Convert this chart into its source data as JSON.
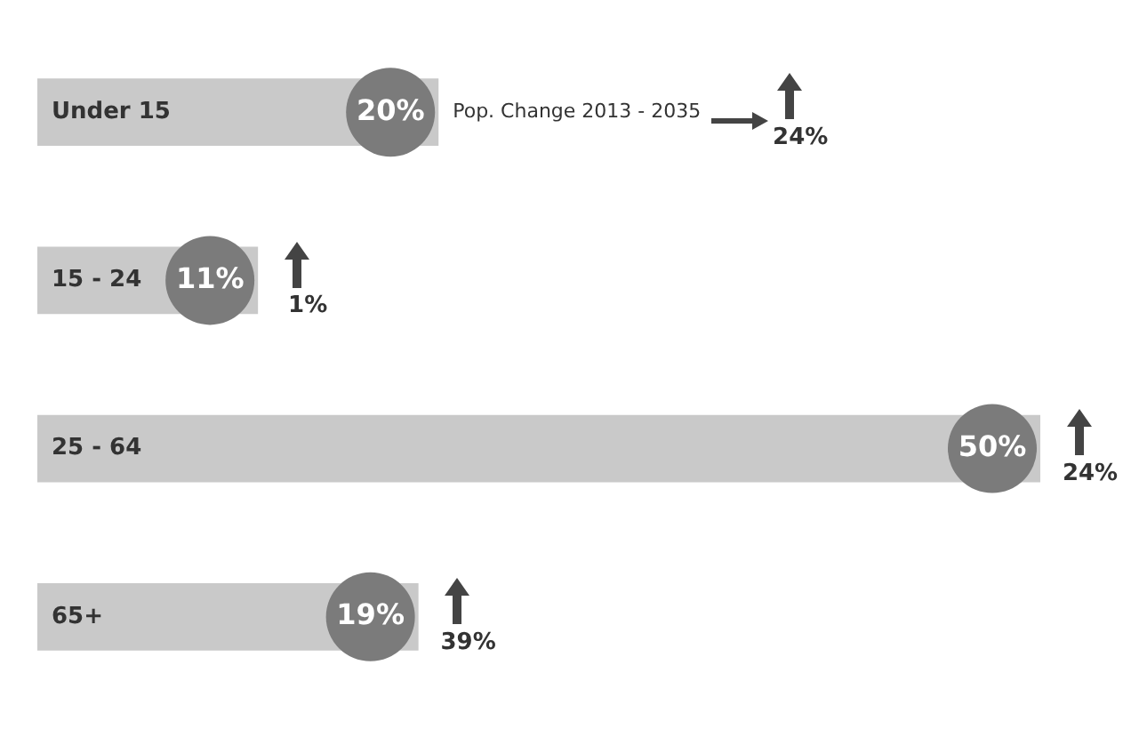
{
  "chart_data": {
    "type": "bar",
    "orientation": "horizontal",
    "categories": [
      "Under 15",
      "15 - 24",
      "25 - 64",
      "65+"
    ],
    "values": [
      20,
      11,
      50,
      19
    ],
    "color": "#c9c9c9",
    "value_labels": [
      "20%",
      "11%",
      "50%",
      "19%"
    ],
    "tick_labels": "y",
    "grid": false,
    "legend": false,
    "annotations": [
      "Pop. Change 2013 - 2035",
      "24%",
      "1%",
      "24%",
      "39%"
    ]
  }
}
